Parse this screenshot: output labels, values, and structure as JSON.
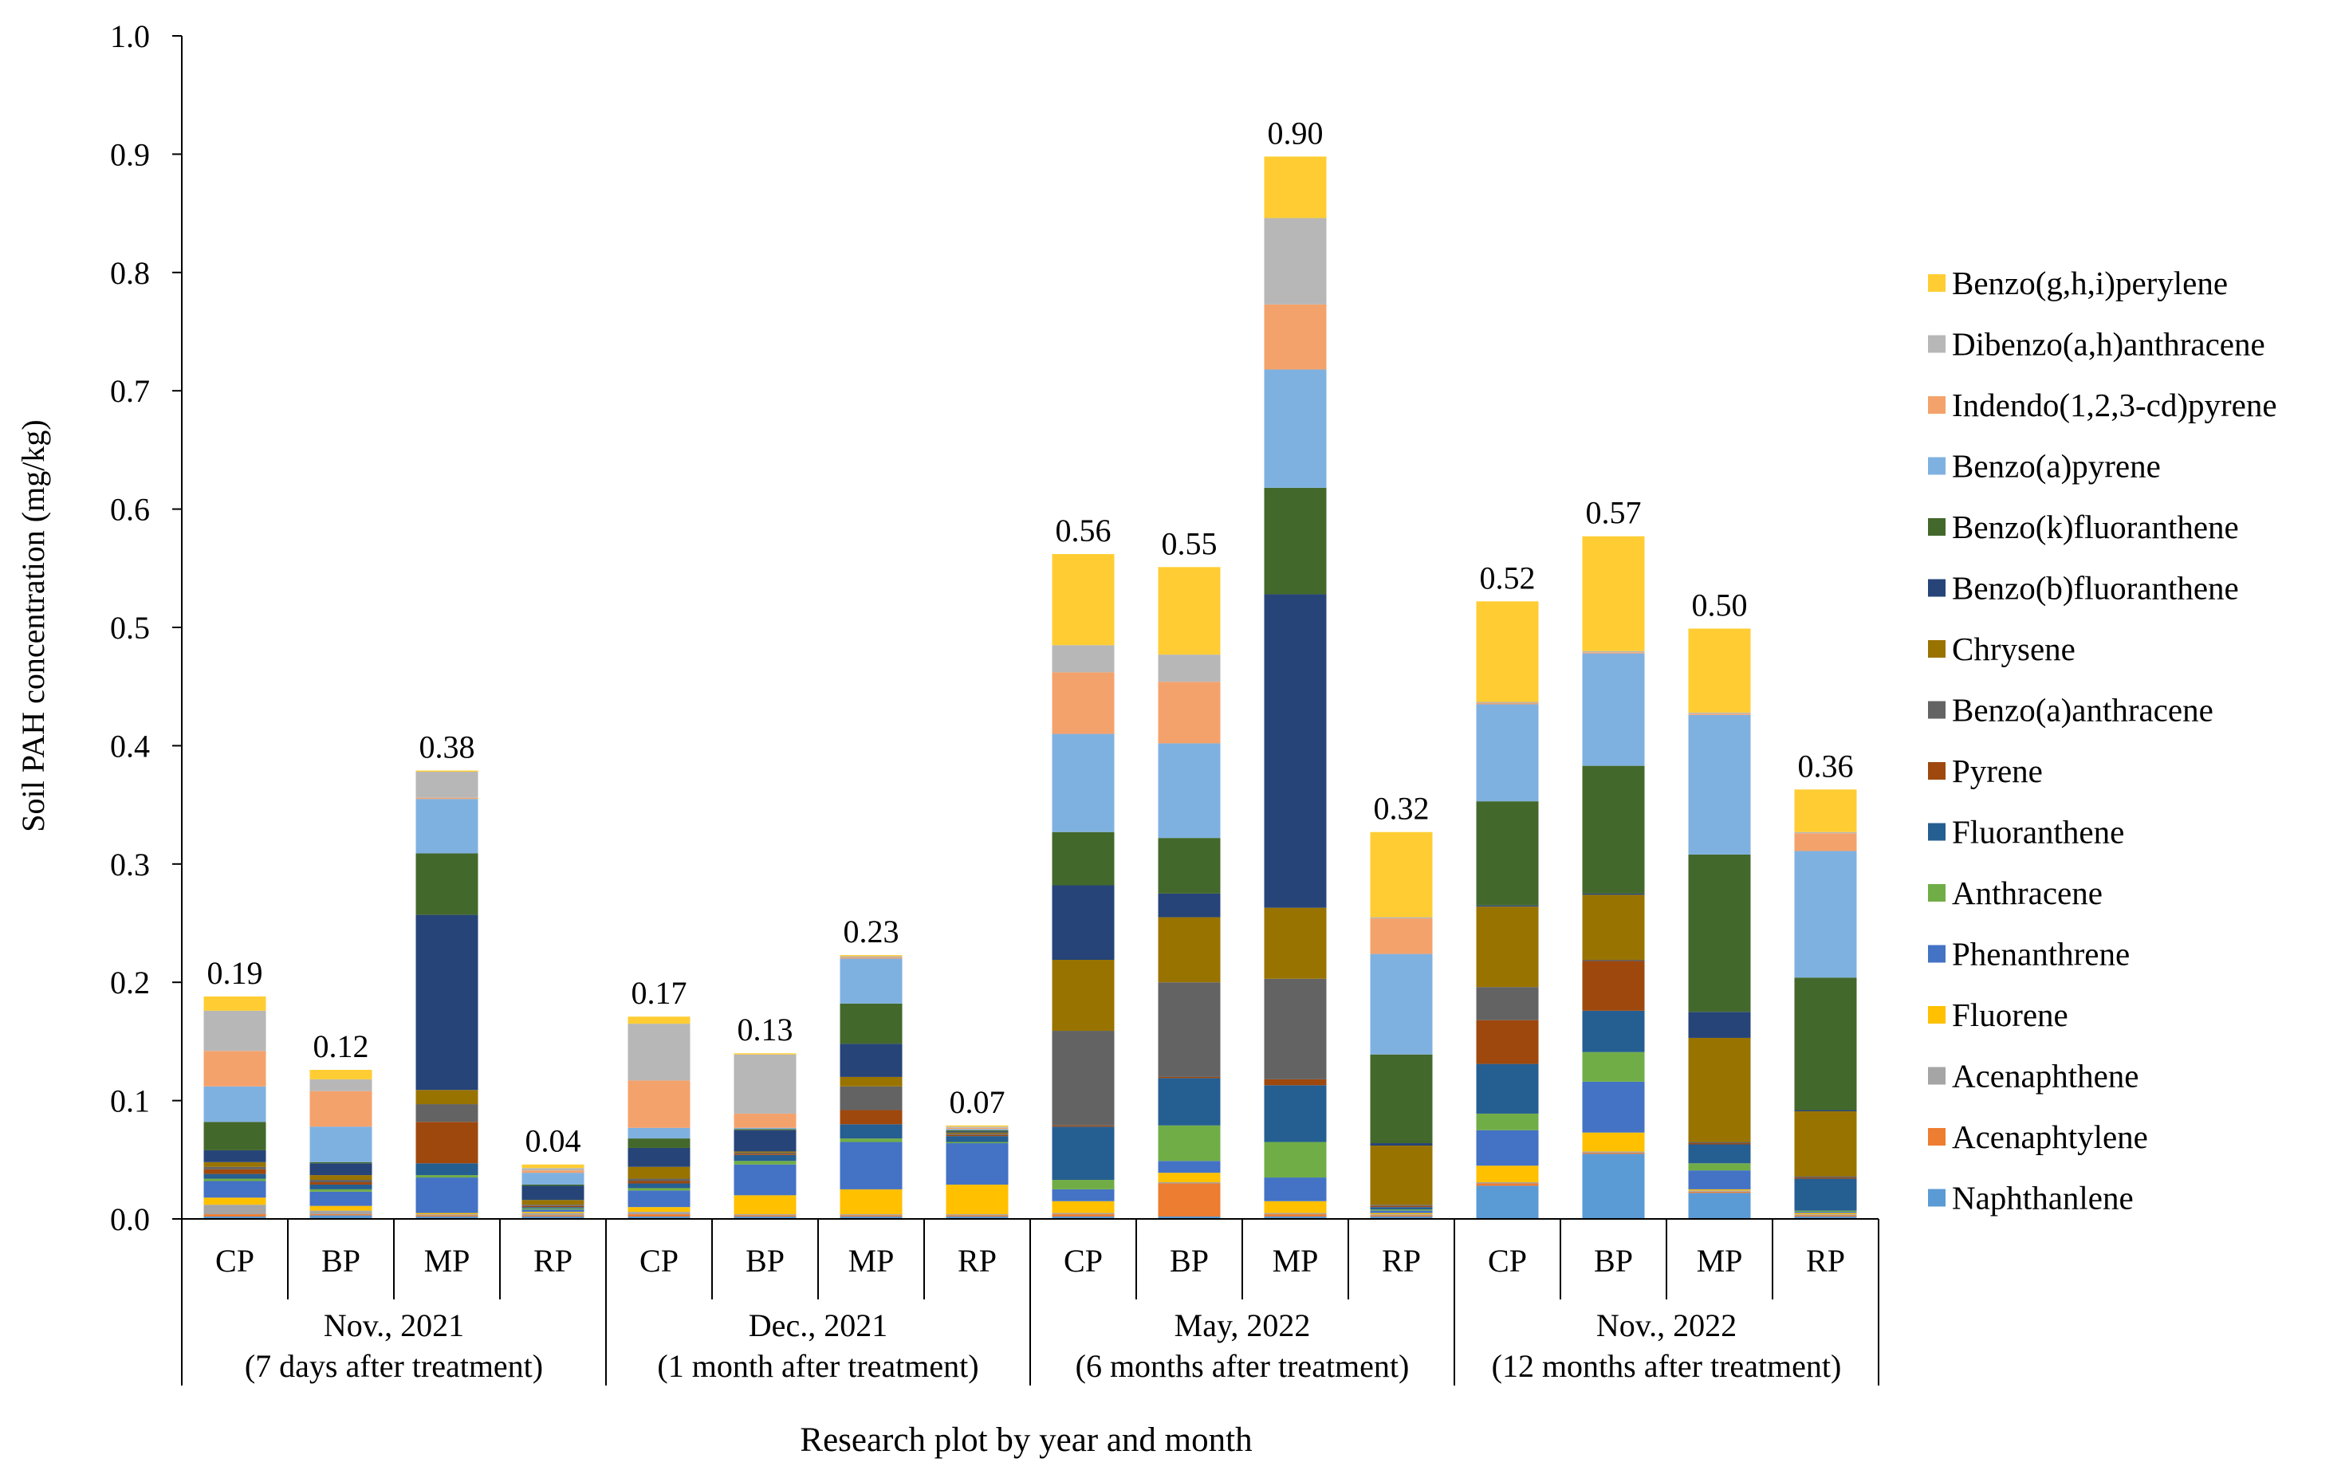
{
  "chart_data": {
    "type": "bar",
    "stacked": true,
    "ylabel": "Soil PAH concentration (mg/kg)",
    "xlabel": "Research plot by year and month",
    "ylim": [
      0,
      1.0
    ],
    "yticks": [
      "0.0",
      "0.1",
      "0.2",
      "0.3",
      "0.4",
      "0.5",
      "0.6",
      "0.7",
      "0.8",
      "0.9",
      "1.0"
    ],
    "groups": [
      {
        "line1": "Nov., 2021",
        "line2": "(7 days after treatment)"
      },
      {
        "line1": "Dec., 2021",
        "line2": "(1 month after treatment)"
      },
      {
        "line1": "May, 2022",
        "line2": "(6 months after treatment)"
      },
      {
        "line1": "Nov., 2022",
        "line2": "(12 months after treatment)"
      }
    ],
    "categories": [
      "CP",
      "BP",
      "MP",
      "RP",
      "CP",
      "BP",
      "MP",
      "RP",
      "CP",
      "BP",
      "MP",
      "RP",
      "CP",
      "BP",
      "MP",
      "RP"
    ],
    "totals": [
      "0.19",
      "0.12",
      "0.38",
      "0.04",
      "0.17",
      "0.13",
      "0.23",
      "0.07",
      "0.56",
      "0.55",
      "0.90",
      "0.32",
      "0.52",
      "0.57",
      "0.50",
      "0.36"
    ],
    "series": [
      {
        "name": "Naphthanlene",
        "color": "#5B9BD5",
        "values": [
          0.002,
          0.003,
          0.002,
          0.002,
          0.002,
          0.002,
          0.002,
          0.002,
          0.002,
          0.002,
          0.002,
          0.002,
          0.028,
          0.055,
          0.022,
          0.002
        ]
      },
      {
        "name": "Acenaphtylene",
        "color": "#ED7D31",
        "values": [
          0.002,
          0.001,
          0.001,
          0.001,
          0.002,
          0.001,
          0.001,
          0.001,
          0.002,
          0.028,
          0.002,
          0.001,
          0.002,
          0.001,
          0.001,
          0.001
        ]
      },
      {
        "name": "Acenaphthene",
        "color": "#A5A5A5",
        "values": [
          0.008,
          0.003,
          0.001,
          0.002,
          0.002,
          0.001,
          0.001,
          0.001,
          0.001,
          0.001,
          0.001,
          0.001,
          0.001,
          0.001,
          0.001,
          0.001
        ]
      },
      {
        "name": "Fluorene",
        "color": "#FFC000",
        "values": [
          0.006,
          0.004,
          0.001,
          0.001,
          0.004,
          0.016,
          0.021,
          0.025,
          0.01,
          0.008,
          0.01,
          0.001,
          0.014,
          0.016,
          0.001,
          0.001
        ]
      },
      {
        "name": "Phenanthrene",
        "color": "#4472C4",
        "values": [
          0.014,
          0.012,
          0.03,
          0.002,
          0.014,
          0.026,
          0.04,
          0.035,
          0.01,
          0.01,
          0.02,
          0.002,
          0.03,
          0.043,
          0.016,
          0.001
        ]
      },
      {
        "name": "Anthracene",
        "color": "#70AD47",
        "values": [
          0.002,
          0.002,
          0.002,
          0.001,
          0.002,
          0.003,
          0.003,
          0.001,
          0.008,
          0.03,
          0.03,
          0.001,
          0.014,
          0.025,
          0.006,
          0.001
        ]
      },
      {
        "name": "Fluoranthene",
        "color": "#255E91",
        "values": [
          0.004,
          0.004,
          0.01,
          0.001,
          0.004,
          0.005,
          0.012,
          0.005,
          0.045,
          0.04,
          0.048,
          0.002,
          0.042,
          0.035,
          0.016,
          0.027
        ]
      },
      {
        "name": "Pyrene",
        "color": "#9E480E",
        "values": [
          0.004,
          0.002,
          0.035,
          0.001,
          0.002,
          0.001,
          0.012,
          0.001,
          0.001,
          0.001,
          0.005,
          0.001,
          0.037,
          0.042,
          0.001,
          0.001
        ]
      },
      {
        "name": "Benzo(a)anthracene",
        "color": "#636363",
        "values": [
          0.002,
          0.002,
          0.015,
          0.001,
          0.002,
          0.001,
          0.02,
          0.001,
          0.08,
          0.08,
          0.085,
          0.001,
          0.028,
          0.001,
          0.001,
          0.001
        ]
      },
      {
        "name": "Chrysene",
        "color": "#997300",
        "values": [
          0.004,
          0.004,
          0.012,
          0.004,
          0.01,
          0.001,
          0.008,
          0.001,
          0.06,
          0.055,
          0.06,
          0.05,
          0.068,
          0.055,
          0.088,
          0.055
        ]
      },
      {
        "name": "Benzo(b)fluoranthene",
        "color": "#264478",
        "values": [
          0.01,
          0.01,
          0.148,
          0.012,
          0.016,
          0.018,
          0.028,
          0.001,
          0.063,
          0.02,
          0.265,
          0.002,
          0.001,
          0.001,
          0.022,
          0.001
        ]
      },
      {
        "name": "Benzo(k)fluoranthene",
        "color": "#43682B",
        "values": [
          0.024,
          0.001,
          0.052,
          0.001,
          0.008,
          0.001,
          0.034,
          0.001,
          0.045,
          0.047,
          0.09,
          0.075,
          0.088,
          0.108,
          0.133,
          0.112
        ]
      },
      {
        "name": "Benzo(a)pyrene",
        "color": "#7FB1E0",
        "values": [
          0.03,
          0.03,
          0.046,
          0.01,
          0.009,
          0.001,
          0.038,
          0.001,
          0.083,
          0.08,
          0.1,
          0.085,
          0.082,
          0.095,
          0.118,
          0.107
        ]
      },
      {
        "name": "Indendo(1,2,3-cd)pyrene",
        "color": "#F4A26B",
        "values": [
          0.03,
          0.03,
          0.001,
          0.002,
          0.04,
          0.012,
          0.001,
          0.001,
          0.052,
          0.052,
          0.055,
          0.03,
          0.001,
          0.001,
          0.001,
          0.015
        ]
      },
      {
        "name": "Dibenzo(a,h)anthracene",
        "color": "#B7B7B7",
        "values": [
          0.034,
          0.01,
          0.022,
          0.002,
          0.048,
          0.05,
          0.001,
          0.001,
          0.023,
          0.023,
          0.073,
          0.001,
          0.001,
          0.001,
          0.001,
          0.001
        ]
      },
      {
        "name": "Benzo(g,h,i)perylene",
        "color": "#FFCD33",
        "values": [
          0.012,
          0.008,
          0.001,
          0.003,
          0.006,
          0.001,
          0.001,
          0.001,
          0.077,
          0.074,
          0.052,
          0.072,
          0.085,
          0.097,
          0.071,
          0.036
        ]
      }
    ]
  }
}
